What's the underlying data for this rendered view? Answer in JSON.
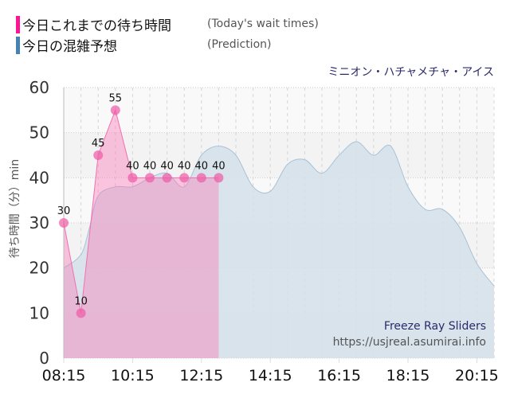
{
  "legend": {
    "actual": {
      "label_jp": "今日これまでの待ち時間",
      "label_en": "(Today's wait times)",
      "color": "#ff1493"
    },
    "prediction": {
      "label_jp": "今日の混雑予想",
      "label_en": "(Prediction)",
      "color": "#4682b4"
    }
  },
  "attraction_name": "ミニオン・ハチャメチャ・アイス",
  "watermark": {
    "ride": "Freeze Ray Sliders",
    "url": "https://usjreal.asumirai.info"
  },
  "chart_data": {
    "type": "area",
    "title": "ミニオン・ハチャメチャ・アイス",
    "xlabel": "",
    "ylabel": "待ち時間（分）min",
    "ylim": [
      0,
      60
    ],
    "yticks": [
      0,
      10,
      20,
      30,
      40,
      50,
      60
    ],
    "xticks": [
      "08:15",
      "10:15",
      "12:15",
      "14:15",
      "16:15",
      "18:15",
      "20:15"
    ],
    "xrange": [
      "08:15",
      "20:45"
    ],
    "grid": true,
    "legend_position": "top-left",
    "series": [
      {
        "name": "今日これまでの待ち時間 (Today's wait times)",
        "color": "#ff1493",
        "x": [
          "08:15",
          "08:45",
          "09:15",
          "09:45",
          "10:15",
          "10:45",
          "11:15",
          "11:45",
          "12:15",
          "12:45"
        ],
        "values": [
          30,
          10,
          45,
          55,
          40,
          40,
          40,
          40,
          40,
          40
        ],
        "data_labels": true
      },
      {
        "name": "今日の混雑予想 (Prediction)",
        "color": "#4682b4",
        "x": [
          "08:15",
          "08:45",
          "09:00",
          "09:15",
          "09:45",
          "10:15",
          "10:45",
          "11:15",
          "11:45",
          "12:15",
          "12:45",
          "13:15",
          "13:45",
          "14:15",
          "14:45",
          "15:15",
          "15:45",
          "16:15",
          "16:45",
          "17:15",
          "17:45",
          "18:15",
          "18:45",
          "19:15",
          "19:45",
          "20:15",
          "20:45"
        ],
        "values": [
          20,
          23,
          29,
          36,
          38,
          38,
          40,
          41,
          38,
          45,
          47,
          45,
          38,
          37,
          43,
          44,
          41,
          45,
          48,
          45,
          47,
          38,
          33,
          33,
          29,
          21,
          16
        ]
      }
    ]
  }
}
